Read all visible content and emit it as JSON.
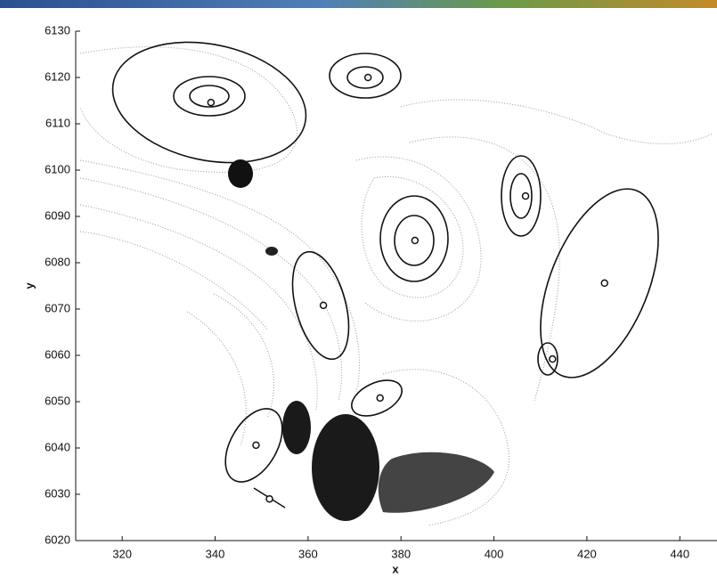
{
  "chart_data": {
    "type": "scatter",
    "x_label": "x",
    "y_label": "y",
    "xlim": [
      310,
      448
    ],
    "ylim": [
      6020,
      6130
    ],
    "xticks": [
      320,
      340,
      360,
      380,
      400,
      420,
      440
    ],
    "yticks": [
      6020,
      6030,
      6040,
      6050,
      6060,
      6070,
      6080,
      6090,
      6100,
      6110,
      6120,
      6130
    ],
    "series": [
      {
        "color": "#111111",
        "x": [
          339.1,
          372.9,
          406.8,
          383,
          423.8,
          412.6,
          363.3,
          375.5,
          348.8,
          351.7
        ],
        "values": [
          6114.6,
          6120,
          6094.4,
          6084.8,
          6075.6,
          6059.2,
          6070.8,
          6050.8,
          6040.6,
          6029
        ]
      }
    ]
  }
}
